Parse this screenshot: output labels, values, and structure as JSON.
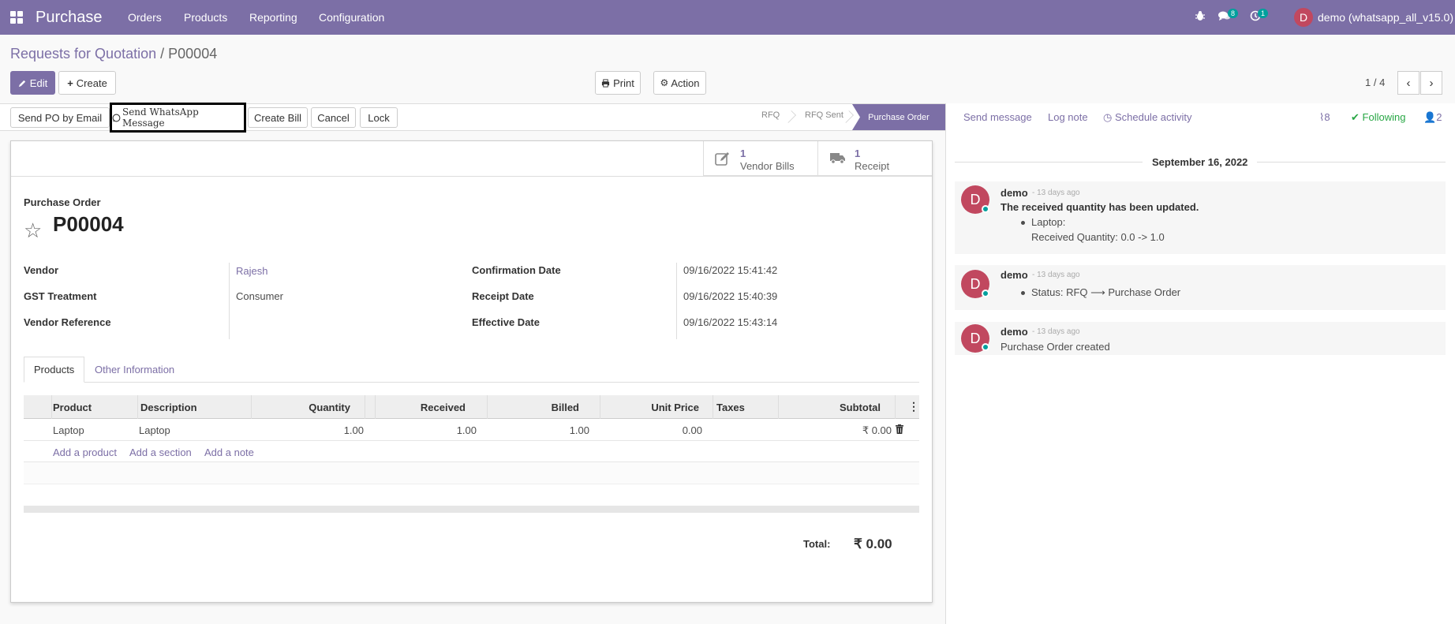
{
  "navbar": {
    "app_name": "Purchase",
    "menu": [
      "Orders",
      "Products",
      "Reporting",
      "Configuration"
    ],
    "messages_count": "8",
    "activities_count": "1",
    "user_initial": "D",
    "user_name": "demo (whatsapp_all_v15.0)"
  },
  "breadcrumb": {
    "parent": "Requests for Quotation",
    "separator": "/",
    "current": "P00004"
  },
  "toolbar": {
    "edit": "Edit",
    "create": "Create",
    "print": "Print",
    "action": "Action"
  },
  "pager": {
    "value": "1 / 4"
  },
  "statusbar": {
    "buttons": [
      "Send PO by Email",
      "Send WhatsApp Message",
      "Create Bill",
      "Cancel",
      "Lock"
    ],
    "stages": [
      "RFQ",
      "RFQ Sent",
      "Purchase Order"
    ],
    "active_stage": "Purchase Order"
  },
  "smart_buttons": [
    {
      "count": "1",
      "label": "Vendor Bills",
      "icon": "pencil-square-icon"
    },
    {
      "count": "1",
      "label": "Receipt",
      "icon": "truck-icon"
    }
  ],
  "form": {
    "label": "Purchase Order",
    "name": "P00004",
    "left_fields": [
      {
        "label": "Vendor",
        "value": "Rajesh"
      },
      {
        "label": "GST Treatment",
        "value": "Consumer"
      },
      {
        "label": "Vendor Reference",
        "value": ""
      }
    ],
    "right_fields": [
      {
        "label": "Confirmation Date",
        "value": "09/16/2022 15:41:42"
      },
      {
        "label": "Receipt Date",
        "value": "09/16/2022 15:40:39"
      },
      {
        "label": "Effective Date",
        "value": "09/16/2022 15:43:14"
      }
    ]
  },
  "tabs": [
    "Products",
    "Other Information"
  ],
  "table": {
    "columns": [
      "Product",
      "Description",
      "Quantity",
      "Received",
      "Billed",
      "Unit Price",
      "Taxes",
      "Subtotal"
    ],
    "rows": [
      {
        "product": "Laptop",
        "description": "Laptop",
        "quantity": "1.00",
        "received": "1.00",
        "billed": "1.00",
        "unit_price": "0.00",
        "taxes": "",
        "subtotal": "₹ 0.00"
      }
    ],
    "add_links": [
      "Add a product",
      "Add a section",
      "Add a note"
    ]
  },
  "total": {
    "label": "Total:",
    "value": "₹ 0.00"
  },
  "chatter": {
    "send_message": "Send message",
    "log_note": "Log note",
    "schedule_activity": "Schedule activity",
    "attachments": "8",
    "following": "Following",
    "followers": "2",
    "date": "September 16, 2022",
    "messages": [
      {
        "author": "demo",
        "ago": "- 13 days ago",
        "title": "The received quantity has been updated.",
        "bullet": "Laptop:",
        "detail": "Received Quantity: 0.0 -> 1.0"
      },
      {
        "author": "demo",
        "ago": "- 13 days ago",
        "bullet": "Status: RFQ ⟶ Purchase Order"
      },
      {
        "author": "demo",
        "ago": "- 13 days ago",
        "text": "Purchase Order created"
      }
    ]
  }
}
